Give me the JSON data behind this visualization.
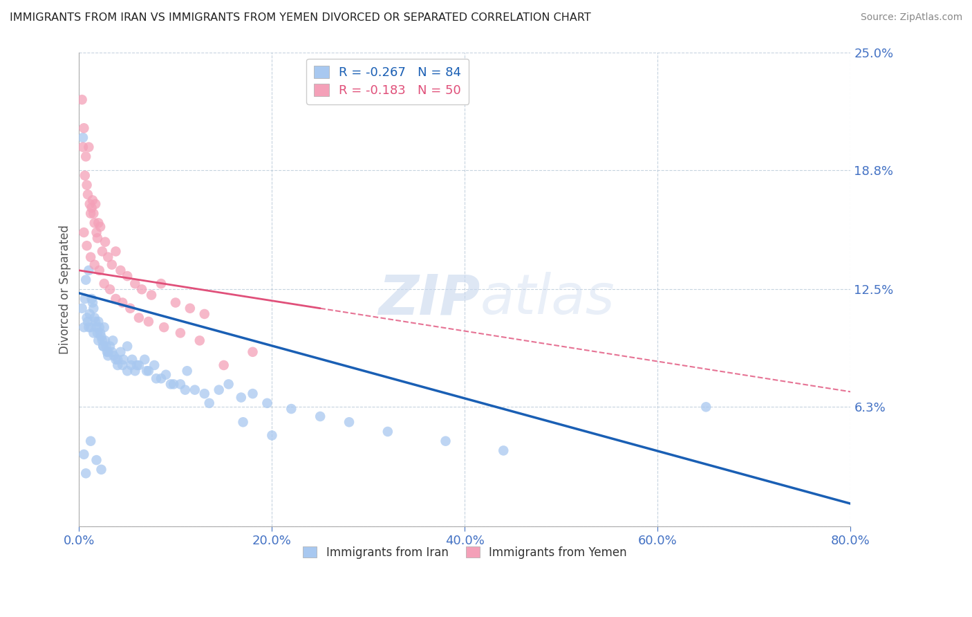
{
  "title": "IMMIGRANTS FROM IRAN VS IMMIGRANTS FROM YEMEN DIVORCED OR SEPARATED CORRELATION CHART",
  "source": "Source: ZipAtlas.com",
  "ylabel": "Divorced or Separated",
  "xlim": [
    0.0,
    80.0
  ],
  "ylim": [
    0.0,
    25.0
  ],
  "xticks": [
    0.0,
    20.0,
    40.0,
    60.0,
    80.0
  ],
  "yticks": [
    0.0,
    6.3,
    12.5,
    18.8,
    25.0
  ],
  "xticklabels": [
    "0.0%",
    "20.0%",
    "40.0%",
    "60.0%",
    "80.0%"
  ],
  "yticklabels": [
    "",
    "6.3%",
    "12.5%",
    "18.8%",
    "25.0%"
  ],
  "iran_color": "#a8c8f0",
  "yemen_color": "#f4a0b8",
  "iran_line_color": "#1a5fb4",
  "yemen_line_color": "#e0507a",
  "iran_R": -0.267,
  "iran_N": 84,
  "yemen_R": -0.183,
  "yemen_N": 50,
  "legend_label_iran": "Immigrants from Iran",
  "legend_label_yemen": "Immigrants from Yemen",
  "iran_trend_x0": 0.0,
  "iran_trend_y0": 12.3,
  "iran_trend_x1": 80.0,
  "iran_trend_y1": 1.2,
  "yemen_trend_x0": 0.0,
  "yemen_trend_y0": 13.5,
  "yemen_trend_x1": 25.0,
  "yemen_trend_y1": 11.5,
  "iran_x": [
    0.3,
    0.4,
    0.5,
    0.6,
    0.7,
    0.8,
    0.9,
    1.0,
    1.1,
    1.2,
    1.3,
    1.4,
    1.5,
    1.6,
    1.7,
    1.8,
    1.9,
    2.0,
    2.1,
    2.2,
    2.3,
    2.4,
    2.5,
    2.6,
    2.7,
    2.8,
    2.9,
    3.0,
    3.2,
    3.4,
    3.6,
    3.8,
    4.0,
    4.3,
    4.6,
    5.0,
    5.4,
    5.8,
    6.2,
    6.8,
    7.2,
    7.8,
    8.5,
    9.0,
    9.8,
    10.5,
    11.2,
    12.0,
    13.0,
    14.5,
    15.5,
    16.8,
    18.0,
    19.5,
    22.0,
    25.0,
    28.0,
    32.0,
    38.0,
    44.0,
    1.0,
    1.5,
    2.0,
    2.5,
    3.0,
    3.5,
    4.0,
    4.5,
    5.0,
    5.5,
    6.0,
    7.0,
    8.0,
    9.5,
    11.0,
    13.5,
    17.0,
    20.0,
    65.0,
    0.5,
    0.7,
    1.2,
    1.8,
    2.3
  ],
  "iran_y": [
    11.5,
    20.5,
    10.5,
    12.0,
    13.0,
    11.0,
    10.8,
    13.5,
    11.2,
    10.5,
    12.0,
    11.8,
    11.5,
    11.0,
    10.8,
    10.5,
    10.2,
    10.8,
    10.5,
    10.2,
    10.0,
    9.8,
    9.5,
    10.5,
    9.8,
    9.5,
    9.2,
    9.0,
    9.5,
    9.2,
    9.0,
    8.8,
    8.5,
    9.2,
    8.8,
    9.5,
    8.5,
    8.2,
    8.5,
    8.8,
    8.2,
    8.5,
    7.8,
    8.0,
    7.5,
    7.5,
    8.2,
    7.2,
    7.0,
    7.2,
    7.5,
    6.8,
    7.0,
    6.5,
    6.2,
    5.8,
    5.5,
    5.0,
    4.5,
    4.0,
    10.5,
    10.2,
    9.8,
    9.5,
    9.2,
    9.8,
    8.8,
    8.5,
    8.2,
    8.8,
    8.5,
    8.2,
    7.8,
    7.5,
    7.2,
    6.5,
    5.5,
    4.8,
    6.3,
    3.8,
    2.8,
    4.5,
    3.5,
    3.0
  ],
  "yemen_x": [
    0.3,
    0.4,
    0.5,
    0.6,
    0.7,
    0.8,
    0.9,
    1.0,
    1.1,
    1.2,
    1.3,
    1.4,
    1.5,
    1.6,
    1.7,
    1.8,
    1.9,
    2.0,
    2.2,
    2.4,
    2.7,
    3.0,
    3.4,
    3.8,
    4.3,
    5.0,
    5.8,
    6.5,
    7.5,
    8.5,
    10.0,
    11.5,
    13.0,
    0.5,
    0.8,
    1.2,
    1.6,
    2.1,
    2.6,
    3.2,
    3.8,
    4.5,
    5.3,
    6.2,
    7.2,
    8.8,
    10.5,
    12.5,
    15.0,
    18.0
  ],
  "yemen_y": [
    22.5,
    20.0,
    21.0,
    18.5,
    19.5,
    18.0,
    17.5,
    20.0,
    17.0,
    16.5,
    16.8,
    17.2,
    16.5,
    16.0,
    17.0,
    15.5,
    15.2,
    16.0,
    15.8,
    14.5,
    15.0,
    14.2,
    13.8,
    14.5,
    13.5,
    13.2,
    12.8,
    12.5,
    12.2,
    12.8,
    11.8,
    11.5,
    11.2,
    15.5,
    14.8,
    14.2,
    13.8,
    13.5,
    12.8,
    12.5,
    12.0,
    11.8,
    11.5,
    11.0,
    10.8,
    10.5,
    10.2,
    9.8,
    8.5,
    9.2
  ]
}
